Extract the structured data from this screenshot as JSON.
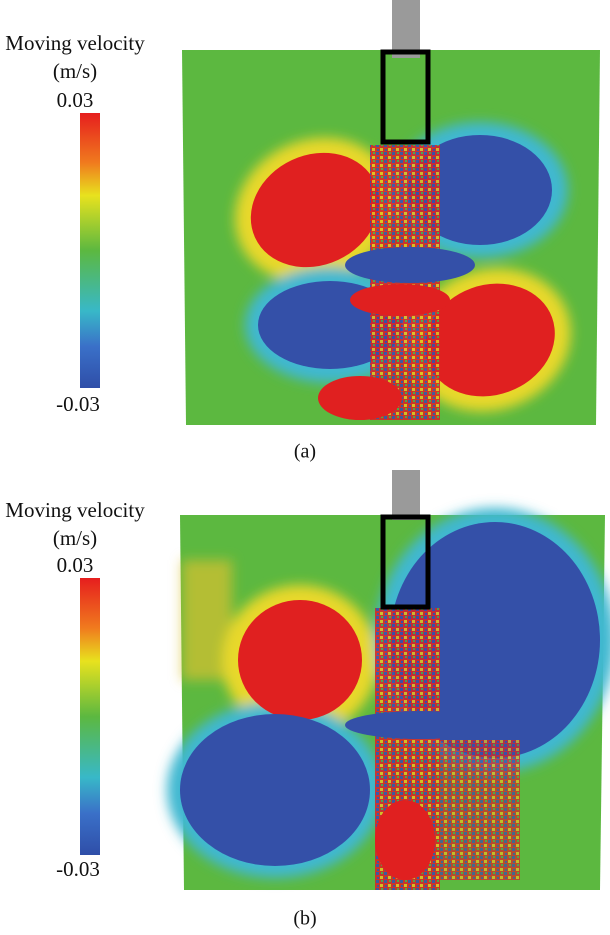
{
  "panels": [
    {
      "label": "(a)",
      "colorbar": {
        "title": "Moving velocity",
        "unit": "(m/s)",
        "max": 0.03,
        "min": -0.03
      }
    },
    {
      "label": "(b)",
      "colorbar": {
        "title": "Moving velocity",
        "unit": "(m/s)",
        "max": 0.03,
        "min": -0.03
      }
    }
  ]
}
